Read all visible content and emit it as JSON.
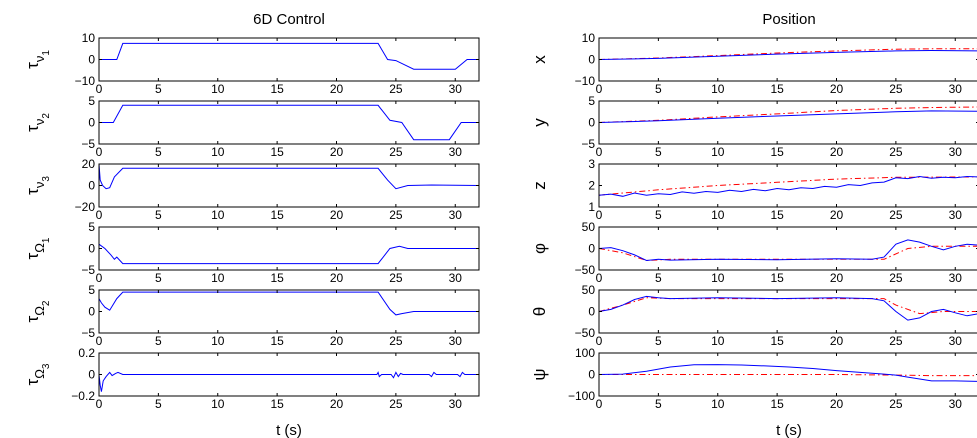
{
  "figure": {
    "xlabel": "t (s)",
    "xlim": [
      0,
      32
    ],
    "xticks": [
      0,
      5,
      10,
      15,
      20,
      25,
      30
    ],
    "colors": {
      "reference": "#ff0000",
      "actual": "#0000ff",
      "axis": "#000000"
    }
  },
  "chart_data": [
    {
      "type": "line",
      "title": "6D Control",
      "xlabel": "t (s)",
      "subplots": [
        {
          "ylabel": "τ_ν1",
          "ylim": [
            -10,
            10
          ],
          "yticks": [
            -10,
            0,
            10
          ],
          "series": [
            {
              "color": "#0000ff",
              "style": "solid",
              "x": [
                0,
                1.5,
                2,
                23.5,
                24.3,
                25,
                26.5,
                30,
                31,
                32
              ],
              "y": [
                0,
                0,
                7.5,
                7.5,
                0,
                -0.5,
                -4.5,
                -4.5,
                0,
                0
              ]
            }
          ]
        },
        {
          "ylabel": "τ_ν2",
          "ylim": [
            -5,
            5
          ],
          "yticks": [
            -5,
            0,
            5
          ],
          "series": [
            {
              "color": "#0000ff",
              "style": "solid",
              "x": [
                0,
                1.2,
                2,
                23.5,
                24.5,
                25.5,
                26.5,
                29.5,
                30.5,
                32
              ],
              "y": [
                0,
                0,
                4,
                4,
                0.5,
                0,
                -4,
                -4,
                0,
                0
              ]
            }
          ]
        },
        {
          "ylabel": "τ_ν3",
          "ylim": [
            -20,
            20
          ],
          "yticks": [
            -20,
            0,
            20
          ],
          "series": [
            {
              "color": "#0000ff",
              "style": "solid",
              "x": [
                0,
                0.1,
                0.3,
                0.6,
                0.9,
                1.3,
                2,
                23.5,
                24.3,
                25,
                26,
                28,
                32
              ],
              "y": [
                20,
                5,
                0,
                -3,
                -2,
                8,
                16,
                16,
                5,
                -3,
                0,
                0.5,
                0
              ]
            }
          ]
        },
        {
          "ylabel": "τ_Ω1",
          "ylim": [
            -5,
            5
          ],
          "yticks": [
            -5,
            0,
            5
          ],
          "series": [
            {
              "color": "#0000ff",
              "style": "solid",
              "x": [
                0,
                0.5,
                1,
                1.3,
                1.5,
                2,
                23.5,
                24.5,
                25.3,
                26,
                32
              ],
              "y": [
                1,
                0,
                -1.5,
                -2.5,
                -2,
                -3.5,
                -3.5,
                0,
                0.5,
                0,
                0
              ]
            }
          ]
        },
        {
          "ylabel": "τ_Ω2",
          "ylim": [
            -5,
            5
          ],
          "yticks": [
            -5,
            0,
            5
          ],
          "series": [
            {
              "color": "#0000ff",
              "style": "solid",
              "x": [
                0,
                0.2,
                0.5,
                0.9,
                1.5,
                2,
                23.5,
                24.5,
                25,
                25.5,
                26.5,
                32
              ],
              "y": [
                3,
                2,
                1,
                0.3,
                3,
                4.5,
                4.5,
                0.5,
                -0.8,
                -0.5,
                0,
                0
              ]
            }
          ]
        },
        {
          "ylabel": "τ_Ω3",
          "ylim": [
            -0.2,
            0.2
          ],
          "yticks": [
            -0.2,
            0,
            0.2
          ],
          "series": [
            {
              "color": "#0000ff",
              "style": "solid",
              "x": [
                0,
                0.1,
                0.2,
                0.35,
                0.6,
                0.9,
                1.1,
                1.4,
                1.6,
                2,
                23.4,
                23.5,
                23.6,
                23.8,
                24.6,
                24.8,
                25,
                25.2,
                25.4,
                25.6,
                27.8,
                28,
                28.2,
                28.4,
                30.2,
                30.4,
                30.6,
                30.8,
                32
              ],
              "y": [
                0,
                -0.1,
                -0.16,
                -0.06,
                -0.02,
                0.02,
                -0.01,
                0.01,
                0.02,
                0,
                0,
                0.02,
                -0.02,
                0,
                0,
                -0.03,
                0.02,
                -0.02,
                0.01,
                0,
                0,
                -0.02,
                0.02,
                0,
                0,
                -0.02,
                0.02,
                0,
                0
              ]
            }
          ]
        }
      ]
    },
    {
      "type": "line",
      "title": "Position",
      "xlabel": "t (s)",
      "subplots": [
        {
          "ylabel": "x",
          "ylim": [
            -10,
            10
          ],
          "yticks": [
            -10,
            0,
            10
          ],
          "series": [
            {
              "color": "#ff0000",
              "style": "dashdot",
              "x": [
                0,
                5,
                10,
                15,
                20,
                25,
                28,
                32
              ],
              "y": [
                0,
                0.7,
                1.8,
                3,
                4,
                4.8,
                5,
                5
              ]
            },
            {
              "color": "#0000ff",
              "style": "solid",
              "x": [
                0,
                5,
                10,
                15,
                20,
                25,
                28,
                32
              ],
              "y": [
                0,
                0.5,
                1.5,
                2.5,
                3.3,
                4,
                4.2,
                4
              ]
            }
          ]
        },
        {
          "ylabel": "y",
          "ylim": [
            -5,
            5
          ],
          "yticks": [
            -5,
            0,
            5
          ],
          "series": [
            {
              "color": "#ff0000",
              "style": "dashdot",
              "x": [
                0,
                5,
                10,
                15,
                20,
                25,
                28,
                32
              ],
              "y": [
                0,
                0.5,
                1.3,
                2,
                2.8,
                3.3,
                3.5,
                3.6
              ]
            },
            {
              "color": "#0000ff",
              "style": "solid",
              "x": [
                0,
                5,
                10,
                15,
                20,
                25,
                28,
                32
              ],
              "y": [
                0,
                0.4,
                1,
                1.5,
                2,
                2.5,
                2.7,
                2.6
              ]
            }
          ]
        },
        {
          "ylabel": "z",
          "ylim": [
            1,
            3
          ],
          "yticks": [
            1,
            2,
            3
          ],
          "series": [
            {
              "color": "#ff0000",
              "style": "dashdot",
              "x": [
                0,
                5,
                10,
                15,
                20,
                25,
                32
              ],
              "y": [
                1.55,
                1.8,
                2,
                2.15,
                2.3,
                2.38,
                2.4
              ]
            },
            {
              "color": "#0000ff",
              "style": "solid",
              "x": [
                0,
                1,
                2,
                3,
                4,
                5,
                6,
                7,
                8,
                9,
                10,
                11,
                12,
                13,
                14,
                15,
                16,
                17,
                18,
                19,
                20,
                21,
                22,
                23,
                24,
                25,
                26,
                27,
                28,
                29,
                30,
                31,
                32
              ],
              "y": [
                1.55,
                1.6,
                1.5,
                1.65,
                1.55,
                1.62,
                1.58,
                1.7,
                1.64,
                1.72,
                1.68,
                1.78,
                1.72,
                1.82,
                1.76,
                1.86,
                1.8,
                1.9,
                1.86,
                1.96,
                1.92,
                2.04,
                2,
                2.12,
                2.16,
                2.36,
                2.32,
                2.42,
                2.34,
                2.38,
                2.36,
                2.42,
                2.4
              ]
            }
          ]
        },
        {
          "ylabel": "φ",
          "ylim": [
            -50,
            50
          ],
          "yticks": [
            -50,
            0,
            50
          ],
          "series": [
            {
              "color": "#ff0000",
              "style": "dashdot",
              "x": [
                0,
                2,
                4,
                6,
                24,
                26,
                28,
                32
              ],
              "y": [
                0,
                -10,
                -28,
                -25,
                -25,
                0,
                5,
                5
              ]
            },
            {
              "color": "#0000ff",
              "style": "solid",
              "x": [
                0,
                1,
                2,
                3,
                4,
                5,
                6,
                10,
                15,
                20,
                23,
                24,
                25,
                26,
                27,
                28,
                29,
                30,
                31,
                32
              ],
              "y": [
                0,
                2,
                -5,
                -15,
                -28,
                -25,
                -27,
                -25,
                -26,
                -24,
                -25,
                -20,
                10,
                20,
                15,
                5,
                -3,
                5,
                10,
                8
              ]
            }
          ]
        },
        {
          "ylabel": "θ",
          "ylim": [
            -50,
            50
          ],
          "yticks": [
            -50,
            0,
            50
          ],
          "series": [
            {
              "color": "#ff0000",
              "style": "dashdot",
              "x": [
                0,
                2,
                4,
                6,
                24,
                25,
                27,
                29,
                32
              ],
              "y": [
                0,
                15,
                32,
                30,
                30,
                15,
                -5,
                0,
                0
              ]
            },
            {
              "color": "#0000ff",
              "style": "solid",
              "x": [
                0,
                1,
                2,
                3,
                4,
                5,
                6,
                10,
                15,
                20,
                23,
                24,
                25,
                26,
                27,
                28,
                29,
                30,
                31,
                32
              ],
              "y": [
                0,
                5,
                15,
                28,
                35,
                32,
                30,
                32,
                30,
                32,
                30,
                25,
                0,
                -20,
                -15,
                0,
                5,
                -3,
                -10,
                -5
              ]
            }
          ]
        },
        {
          "ylabel": "ψ",
          "ylim": [
            -100,
            100
          ],
          "yticks": [
            -100,
            0,
            100
          ],
          "series": [
            {
              "color": "#ff0000",
              "style": "dashdot",
              "x": [
                0,
                10,
                20,
                25,
                28,
                32
              ],
              "y": [
                0,
                0,
                0,
                -3,
                -5,
                -5
              ]
            },
            {
              "color": "#0000ff",
              "style": "solid",
              "x": [
                0,
                2,
                4,
                6,
                8,
                10,
                12,
                14,
                16,
                18,
                20,
                22,
                24,
                25,
                26,
                28,
                30,
                32
              ],
              "y": [
                0,
                2,
                15,
                35,
                45,
                46,
                44,
                40,
                35,
                28,
                18,
                10,
                2,
                -3,
                -12,
                -30,
                -30,
                -32
              ]
            }
          ]
        }
      ]
    }
  ]
}
